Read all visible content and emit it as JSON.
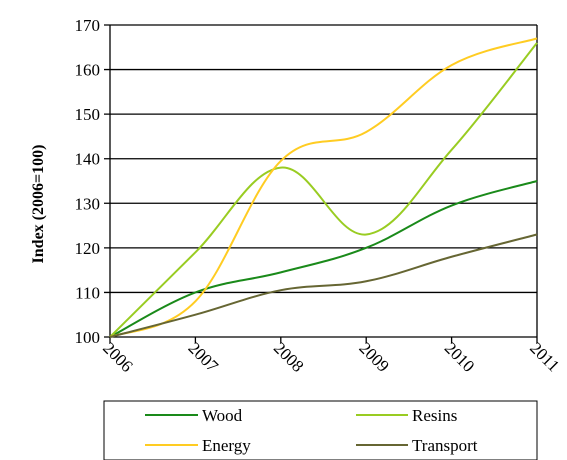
{
  "chart_data": {
    "type": "line",
    "ylabel": "Index (2006=100)",
    "xlabel": "",
    "title": "",
    "x": [
      "2006",
      "2007",
      "2008",
      "2009",
      "2010",
      "2011"
    ],
    "ylim": [
      100,
      170
    ],
    "yticks": [
      100,
      110,
      120,
      130,
      140,
      150,
      160,
      170
    ],
    "grid": "horizontal",
    "legend_position": "bottom",
    "series": [
      {
        "name": "Wood",
        "color": "#1a8a1a",
        "values": [
          100,
          110,
          114.5,
          120,
          129.5,
          135
        ]
      },
      {
        "name": "Resins",
        "color": "#99cc22",
        "values": [
          100,
          119,
          138,
          123,
          142,
          166
        ]
      },
      {
        "name": "Energy",
        "color": "#ffcc22",
        "values": [
          100,
          108,
          139.5,
          146,
          161,
          167
        ]
      },
      {
        "name": "Transport",
        "color": "#666633",
        "values": [
          100,
          105,
          110.5,
          112.5,
          118,
          123
        ]
      }
    ]
  }
}
